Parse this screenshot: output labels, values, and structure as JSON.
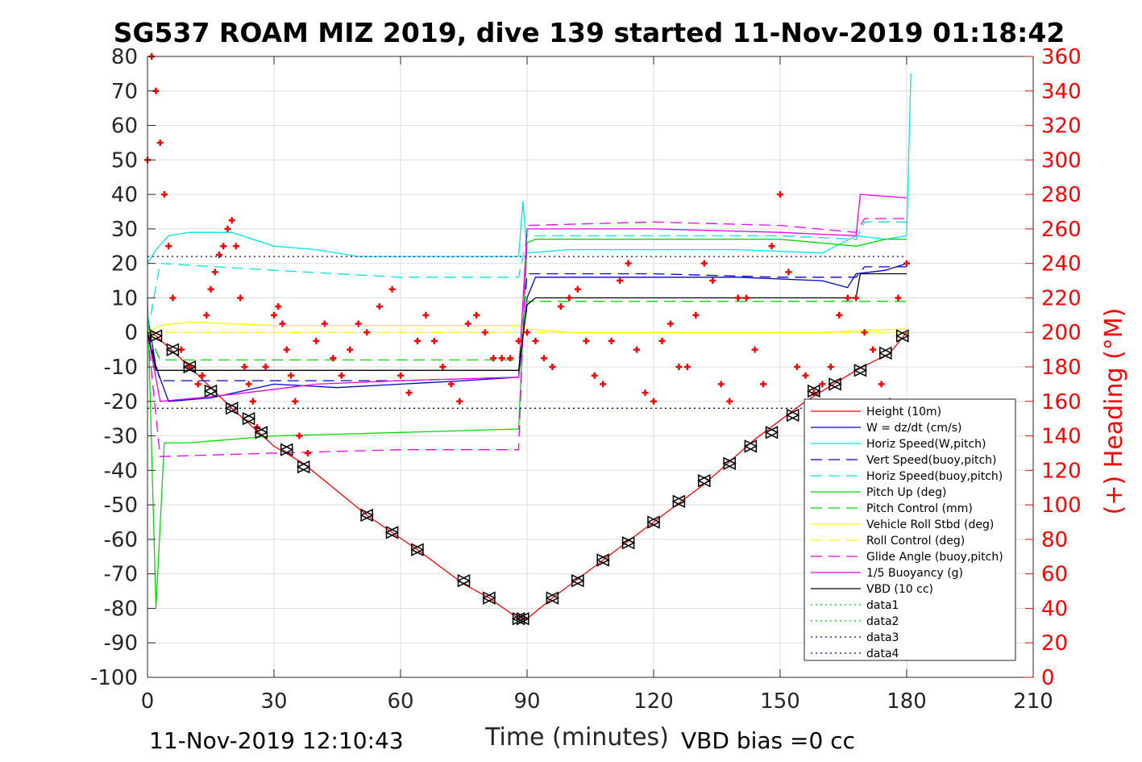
{
  "chart_data": {
    "type": "line",
    "title": "SG537 ROAM MIZ 2019, dive 139 started 11-Nov-2019 01:18:42",
    "xlabel": "Time (minutes)",
    "ylabel": "",
    "ylabel_right": "(+) Heading (°M)",
    "xlim": [
      0,
      210
    ],
    "ylim": [
      -100,
      80
    ],
    "ylim_right": [
      0,
      360
    ],
    "x_ticks": [
      0,
      30,
      60,
      90,
      120,
      150,
      180,
      210
    ],
    "y_ticks": [
      80,
      70,
      60,
      50,
      40,
      30,
      20,
      10,
      0,
      -10,
      -20,
      -30,
      -40,
      -50,
      -60,
      -70,
      -80,
      -90,
      -100
    ],
    "y_ticks_right": [
      360,
      340,
      320,
      300,
      280,
      260,
      240,
      220,
      200,
      180,
      160,
      140,
      120,
      100,
      80,
      60,
      40,
      20,
      0
    ],
    "grid": true,
    "legend_position": "bottom-right",
    "footer_left": "11-Nov-2019 12:10:43",
    "footer_right": "VBD bias =0 cc",
    "series": [
      {
        "name": "Height (10m)",
        "color": "#ff0000",
        "style": "solid",
        "x": [
          0,
          2,
          10,
          20,
          30,
          37,
          52,
          64,
          75,
          81,
          88,
          90,
          96,
          108,
          120,
          132,
          144,
          156,
          168,
          176,
          180
        ],
        "y": [
          0,
          -1,
          -10,
          -22,
          -33,
          -38,
          -53,
          -63,
          -73,
          -77,
          -83,
          -83,
          -77,
          -66,
          -55,
          -44,
          -31,
          -20,
          -11,
          -6,
          0
        ]
      },
      {
        "name": "W = dz/dt (cm/s)",
        "color": "#0000cc",
        "style": "solid",
        "x": [
          0,
          2,
          5,
          15,
          30,
          45,
          60,
          75,
          88,
          90,
          92,
          100,
          120,
          140,
          160,
          166,
          168,
          175,
          180
        ],
        "y": [
          5,
          -10,
          -20,
          -19,
          -15,
          -16,
          -15,
          -14,
          -13,
          10,
          16,
          16,
          16,
          16,
          15,
          13,
          17,
          18,
          20
        ]
      },
      {
        "name": "Horiz Speed(W,pitch)",
        "color": "#00e5e5",
        "style": "solid",
        "x": [
          0,
          2,
          5,
          10,
          20,
          30,
          40,
          50,
          60,
          70,
          80,
          88,
          89,
          90,
          100,
          120,
          140,
          160,
          168,
          175,
          180,
          181
        ],
        "y": [
          20,
          24,
          28,
          29,
          29,
          25,
          24,
          22,
          22,
          22,
          22,
          22,
          38,
          23,
          24,
          24,
          24,
          23,
          28,
          27,
          28,
          75
        ]
      },
      {
        "name": "Vert Speed(buoy,pitch)",
        "color": "#0000cc",
        "style": "dash",
        "x": [
          0,
          3,
          30,
          60,
          88,
          90,
          120,
          150,
          168,
          170,
          180
        ],
        "y": [
          0,
          -14,
          -14,
          -14,
          -13,
          17,
          17,
          16,
          16,
          19,
          19
        ]
      },
      {
        "name": "Horiz Speed(buoy,pitch)",
        "color": "#00e5e5",
        "style": "dash",
        "x": [
          0,
          3,
          30,
          60,
          88,
          90,
          120,
          150,
          168,
          170,
          180
        ],
        "y": [
          0,
          20,
          18,
          16,
          16,
          28,
          28,
          28,
          27,
          32,
          32
        ]
      },
      {
        "name": "Pitch Up (deg)",
        "color": "#00dd00",
        "style": "solid",
        "x": [
          0,
          2,
          4,
          10,
          30,
          60,
          88,
          90,
          92,
          120,
          150,
          168,
          175,
          180
        ],
        "y": [
          10,
          -80,
          -32,
          -32,
          -30,
          -29,
          -28,
          26,
          27,
          27,
          27,
          25,
          27,
          27
        ]
      },
      {
        "name": "Pitch Control (mm)",
        "color": "#00dd00",
        "style": "dash",
        "x": [
          0,
          3,
          88,
          90,
          180
        ],
        "y": [
          0,
          -8,
          -8,
          9,
          9
        ]
      },
      {
        "name": "Vehicle Roll Stbd (deg)",
        "color": "#ffff00",
        "style": "solid",
        "x": [
          0,
          3,
          10,
          30,
          50,
          60,
          75,
          88,
          90,
          100,
          120,
          140,
          160,
          180
        ],
        "y": [
          0,
          2,
          3,
          2,
          2,
          2,
          2,
          2,
          1,
          0,
          0,
          0,
          0,
          1
        ]
      },
      {
        "name": "Roll Control (deg)",
        "color": "#ffff00",
        "style": "dash",
        "x": [
          0,
          180
        ],
        "y": [
          0,
          0
        ]
      },
      {
        "name": "Glide Angle (buoy,pitch)",
        "color": "#ee00ee",
        "style": "dash",
        "x": [
          0,
          3,
          30,
          60,
          88,
          90,
          120,
          150,
          168,
          170,
          180
        ],
        "y": [
          0,
          -36,
          -35,
          -34,
          -34,
          31,
          32,
          31,
          29,
          33,
          33
        ]
      },
      {
        "name": "1/5 Buoyancy (g)",
        "color": "#ee00ee",
        "style": "solid",
        "x": [
          0,
          3,
          20,
          40,
          60,
          88,
          90,
          120,
          150,
          168,
          169,
          180
        ],
        "y": [
          0,
          -20,
          -18,
          -15,
          -14,
          -13,
          30,
          30,
          29,
          28,
          40,
          39
        ]
      },
      {
        "name": "VBD (10 cc)",
        "color": "#000000",
        "style": "solid",
        "x": [
          0,
          2,
          10,
          88,
          90,
          92,
          168,
          169,
          180
        ],
        "y": [
          0,
          -11,
          -11,
          -11,
          8,
          10,
          10,
          17,
          17
        ]
      },
      {
        "name": "data1",
        "color": "#00dd00",
        "style": "dot",
        "x": [],
        "y": []
      },
      {
        "name": "data2",
        "color": "#00dd00",
        "style": "dot",
        "x": [],
        "y": []
      },
      {
        "name": "data3",
        "color": "#000088",
        "style": "dot",
        "x": [
          0,
          180
        ],
        "y": [
          22,
          22
        ]
      },
      {
        "name": "data4",
        "color": "#000088",
        "style": "dot",
        "x": [
          0,
          180
        ],
        "y": [
          -22,
          -22
        ]
      }
    ],
    "heading_series": {
      "color": "#ff0000",
      "marker": "+",
      "x": [
        0,
        1,
        2,
        3,
        4,
        5,
        6,
        8,
        10,
        12,
        13,
        14,
        15,
        16,
        17,
        18,
        19,
        20,
        21,
        22,
        23,
        24,
        25,
        26,
        28,
        30,
        31,
        32,
        33,
        34,
        35,
        36,
        38,
        40,
        42,
        44,
        46,
        48,
        50,
        52,
        55,
        58,
        60,
        62,
        64,
        66,
        68,
        70,
        72,
        74,
        76,
        78,
        80,
        82,
        84,
        86,
        88,
        90,
        92,
        94,
        96,
        98,
        100,
        102,
        104,
        106,
        108,
        110,
        112,
        114,
        116,
        118,
        120,
        122,
        124,
        126,
        128,
        130,
        132,
        134,
        136,
        138,
        140,
        142,
        144,
        146,
        148,
        150,
        152,
        154,
        156,
        158,
        160,
        162,
        164,
        166,
        168,
        170,
        172,
        174,
        176,
        178,
        180
      ],
      "y": [
        300,
        360,
        340,
        310,
        280,
        250,
        220,
        190,
        180,
        170,
        175,
        210,
        225,
        235,
        245,
        250,
        260,
        265,
        250,
        220,
        180,
        170,
        160,
        145,
        180,
        210,
        215,
        205,
        190,
        175,
        160,
        140,
        130,
        195,
        205,
        185,
        175,
        190,
        205,
        200,
        215,
        225,
        175,
        165,
        195,
        210,
        195,
        180,
        170,
        160,
        205,
        210,
        200,
        185,
        185,
        185,
        195,
        200,
        195,
        185,
        180,
        215,
        220,
        225,
        195,
        175,
        170,
        195,
        230,
        240,
        190,
        165,
        160,
        195,
        205,
        180,
        180,
        210,
        240,
        230,
        170,
        160,
        220,
        220,
        190,
        170,
        250,
        280,
        235,
        180,
        175,
        165,
        170,
        180,
        210,
        220,
        220,
        200,
        190,
        170,
        160,
        220,
        240
      ]
    },
    "waypoint_markers": {
      "x": [
        2,
        6,
        10,
        15,
        20,
        24,
        27,
        33,
        37,
        52,
        58,
        64,
        75,
        81,
        88,
        89,
        96,
        102,
        108,
        114,
        120,
        126,
        132,
        138,
        143,
        148,
        153,
        158,
        163,
        169,
        175,
        179
      ],
      "y": [
        -1,
        -5,
        -10,
        -17,
        -22,
        -25,
        -29,
        -34,
        -39,
        -53,
        -58,
        -63,
        -72,
        -77,
        -83,
        -83,
        -77,
        -72,
        -66,
        -61,
        -55,
        -49,
        -43,
        -38,
        -33,
        -29,
        -24,
        -17,
        -15,
        -11,
        -6,
        -1
      ]
    }
  }
}
